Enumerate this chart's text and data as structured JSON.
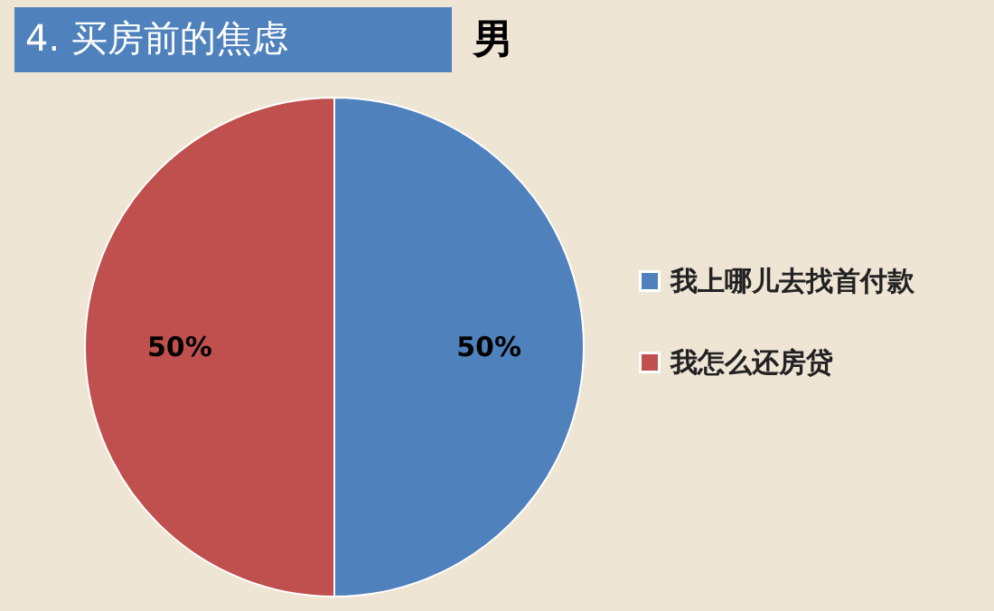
{
  "chart_data": {
    "type": "pie",
    "title": "4.  买房前的焦虑",
    "subtitle": "男",
    "categories": [
      "我上哪儿去找首付款",
      "我怎么还房贷"
    ],
    "values": [
      50,
      50
    ],
    "colors": [
      "#4f81bd",
      "#c0504d"
    ],
    "value_labels": [
      "50%",
      "50%"
    ],
    "legend": "right"
  }
}
